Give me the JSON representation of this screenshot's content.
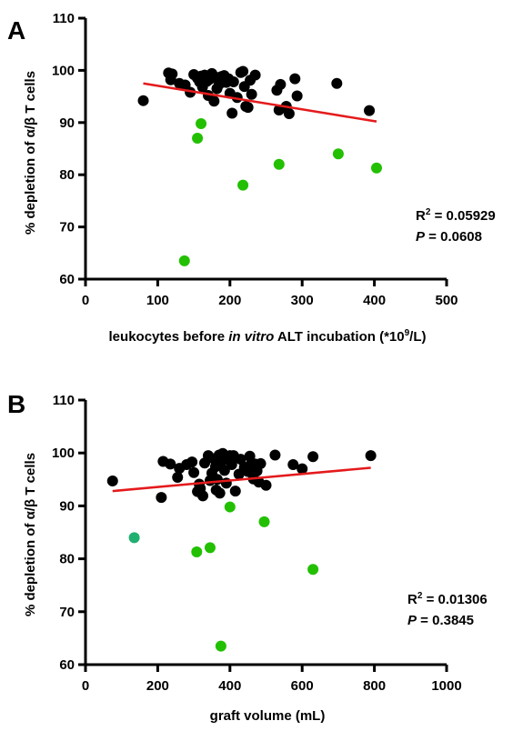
{
  "chart_data": [
    {
      "type": "scatter",
      "panel": "A",
      "xlabel_parts": [
        "leukocytes before ",
        "in vitro",
        " ALT incubation (*10",
        "9",
        "/L)"
      ],
      "ylabel": "% depletion of α/β T cells",
      "xlim": [
        0,
        500
      ],
      "ylim": [
        60,
        110
      ],
      "xticks": [
        0,
        100,
        200,
        300,
        400,
        500
      ],
      "yticks": [
        60,
        70,
        80,
        90,
        100,
        110
      ],
      "stats": {
        "r2_prefix": "R",
        "r2_sup": "2",
        "r2_value": " = 0.05929",
        "p_label": "P",
        "p_value": " = 0.0608"
      },
      "trendline": {
        "color": "#e41a1c",
        "x": [
          80,
          403
        ],
        "y": [
          97.5,
          90.2
        ]
      },
      "series": [
        {
          "color": "#000000",
          "points": [
            [
              80,
              94.2
            ],
            [
              115,
              99.5
            ],
            [
              120,
              99.3
            ],
            [
              118,
              98.2
            ],
            [
              130,
              97.5
            ],
            [
              138,
              97.2
            ],
            [
              145,
              95.8
            ],
            [
              150,
              99.2
            ],
            [
              155,
              98.5
            ],
            [
              158,
              97.8
            ],
            [
              160,
              98.9
            ],
            [
              162,
              96.8
            ],
            [
              165,
              99.1
            ],
            [
              168,
              97.9
            ],
            [
              170,
              95.2
            ],
            [
              172,
              98.3
            ],
            [
              175,
              99.4
            ],
            [
              178,
              94.1
            ],
            [
              180,
              98.7
            ],
            [
              182,
              96.5
            ],
            [
              185,
              97.3
            ],
            [
              188,
              98.8
            ],
            [
              192,
              99.0
            ],
            [
              195,
              97.7
            ],
            [
              198,
              98.4
            ],
            [
              200,
              95.6
            ],
            [
              203,
              91.8
            ],
            [
              205,
              97.8
            ],
            [
              210,
              94.8
            ],
            [
              215,
              99.6
            ],
            [
              218,
              99.8
            ],
            [
              220,
              96.9
            ],
            [
              222,
              93.1
            ],
            [
              225,
              92.9
            ],
            [
              228,
              98.1
            ],
            [
              230,
              95.4
            ],
            [
              235,
              99.1
            ],
            [
              265,
              96.2
            ],
            [
              268,
              92.4
            ],
            [
              270,
              97.3
            ],
            [
              278,
              93.1
            ],
            [
              282,
              91.7
            ],
            [
              290,
              98.4
            ],
            [
              293,
              95.1
            ],
            [
              348,
              97.5
            ],
            [
              393,
              92.3
            ]
          ]
        },
        {
          "color": "#22c000",
          "points": [
            [
              137,
              63.5
            ],
            [
              155,
              87.0
            ],
            [
              160,
              89.8
            ],
            [
              218,
              78.0
            ],
            [
              268,
              82.0
            ],
            [
              350,
              84.0
            ],
            [
              403,
              81.3
            ]
          ]
        }
      ]
    },
    {
      "type": "scatter",
      "panel": "B",
      "xlabel": "graft volume (mL)",
      "ylabel": "% depletion of α/β T cells",
      "xlim": [
        0,
        1000
      ],
      "ylim": [
        60,
        110
      ],
      "xticks": [
        0,
        200,
        400,
        600,
        800,
        1000
      ],
      "yticks": [
        60,
        70,
        80,
        90,
        100,
        110
      ],
      "stats": {
        "r2_prefix": "R",
        "r2_sup": "2",
        "r2_value": " = 0.01306",
        "p_label": "P",
        "p_value": " = 0.3845"
      },
      "trendline": {
        "color": "#e41a1c",
        "x": [
          75,
          790
        ],
        "y": [
          92.8,
          97.2
        ]
      },
      "series": [
        {
          "color": "#000000",
          "points": [
            [
              75,
              94.7
            ],
            [
              210,
              91.6
            ],
            [
              215,
              98.4
            ],
            [
              235,
              97.9
            ],
            [
              255,
              95.4
            ],
            [
              260,
              97.1
            ],
            [
              280,
              97.8
            ],
            [
              295,
              98.3
            ],
            [
              300,
              96.3
            ],
            [
              310,
              92.7
            ],
            [
              315,
              94.1
            ],
            [
              318,
              93.3
            ],
            [
              325,
              91.9
            ],
            [
              330,
              98.1
            ],
            [
              340,
              99.5
            ],
            [
              345,
              94.8
            ],
            [
              350,
              96.2
            ],
            [
              355,
              98.9
            ],
            [
              360,
              97.4
            ],
            [
              362,
              93.0
            ],
            [
              365,
              95.0
            ],
            [
              370,
              99.6
            ],
            [
              372,
              92.4
            ],
            [
              375,
              98.1
            ],
            [
              380,
              99.9
            ],
            [
              385,
              96.7
            ],
            [
              390,
              94.3
            ],
            [
              395,
              98.8
            ],
            [
              400,
              99.5
            ],
            [
              405,
              97.8
            ],
            [
              410,
              99.5
            ],
            [
              415,
              92.8
            ],
            [
              425,
              96.0
            ],
            [
              430,
              98.8
            ],
            [
              440,
              97.3
            ],
            [
              450,
              96.5
            ],
            [
              455,
              99.4
            ],
            [
              460,
              98.1
            ],
            [
              465,
              95.1
            ],
            [
              470,
              97.9
            ],
            [
              475,
              96.6
            ],
            [
              480,
              94.5
            ],
            [
              485,
              98.0
            ],
            [
              500,
              93.9
            ],
            [
              525,
              99.6
            ],
            [
              575,
              97.8
            ],
            [
              600,
              97.0
            ],
            [
              630,
              99.3
            ],
            [
              790,
              99.5
            ]
          ]
        },
        {
          "color": "#22c000",
          "points": [
            [
              308,
              81.3
            ],
            [
              345,
              82.1
            ],
            [
              400,
              89.8
            ],
            [
              495,
              87.0
            ],
            [
              630,
              78.0
            ],
            [
              375,
              63.5
            ]
          ]
        },
        {
          "color": "#20b070",
          "points": [
            [
              135,
              84.0
            ]
          ]
        }
      ]
    }
  ]
}
